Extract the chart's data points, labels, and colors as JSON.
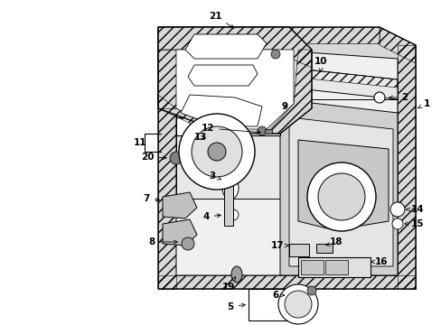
{
  "background_color": "#ffffff",
  "figsize": [
    4.89,
    3.6
  ],
  "dpi": 100,
  "line_color": "#000000",
  "text_color": "#000000",
  "label_fontsize": 7.5,
  "hatching": "///",
  "panel_gray": "#c8c8c8",
  "light_gray": "#e0e0e0"
}
